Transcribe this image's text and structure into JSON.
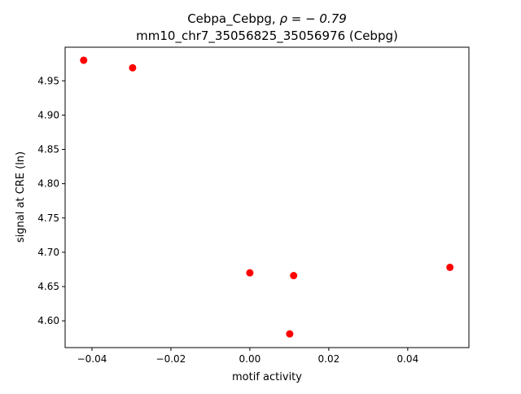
{
  "chart_data": {
    "type": "scatter",
    "title_line1_prefix": "Cebpa_Cebpg, ",
    "title_line1_rho": "ρ = − 0.79",
    "title_line2": "mm10_chr7_35056825_35056976 (Cebpg)",
    "xlabel": "motif activity",
    "ylabel": "signal at CRE (ln)",
    "xlim": [
      -0.0468,
      0.0555
    ],
    "ylim": [
      4.561,
      4.999
    ],
    "xticks": [
      -0.04,
      -0.02,
      0.0,
      0.02,
      0.04
    ],
    "xtick_labels": [
      "−0.04",
      "−0.02",
      "0.00",
      "0.02",
      "0.04"
    ],
    "yticks": [
      4.6,
      4.65,
      4.7,
      4.75,
      4.8,
      4.85,
      4.9,
      4.95
    ],
    "ytick_labels": [
      "4.60",
      "4.65",
      "4.70",
      "4.75",
      "4.80",
      "4.85",
      "4.90",
      "4.95"
    ],
    "grid": false,
    "marker_color": "#ff0000",
    "points": [
      {
        "x": -0.0421,
        "y": 4.98
      },
      {
        "x": -0.0297,
        "y": 4.969
      },
      {
        "x": 0.0,
        "y": 4.67
      },
      {
        "x": 0.0111,
        "y": 4.666
      },
      {
        "x": 0.0101,
        "y": 4.581
      },
      {
        "x": 0.0507,
        "y": 4.678
      }
    ]
  }
}
